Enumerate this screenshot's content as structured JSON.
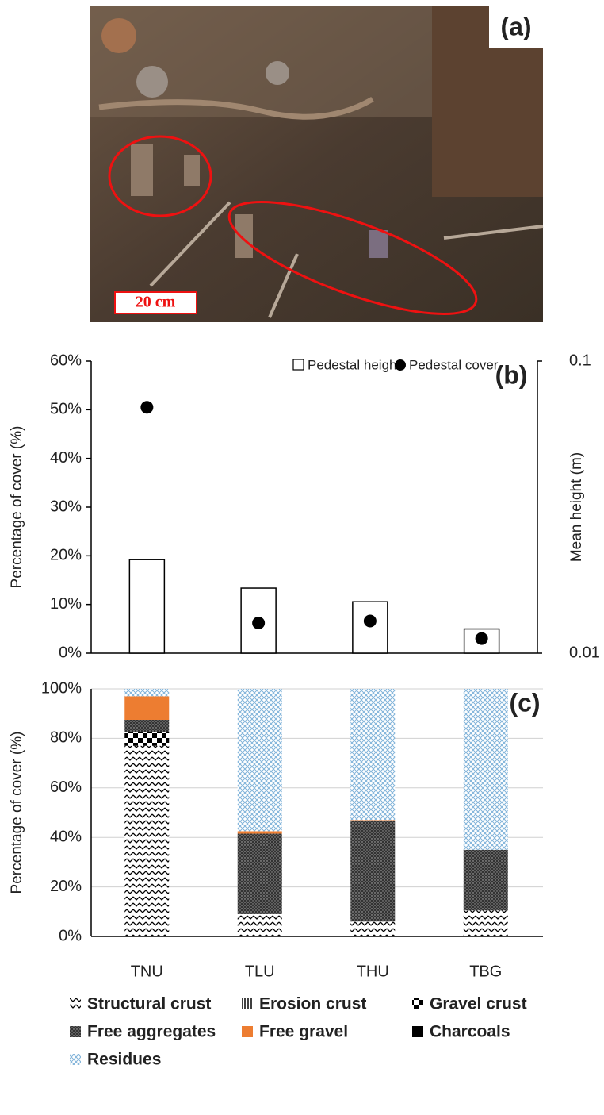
{
  "photo": {
    "label": "(a)",
    "scale_bar": "20 cm"
  },
  "chart_data": [
    {
      "type": "bar",
      "panel_label": "(b)",
      "y_label": "Percentage of cover (%)",
      "y2_label": "Mean height (m)",
      "ylim": [
        0,
        60
      ],
      "yticks": [
        {
          "value": 0,
          "label": "0%"
        },
        {
          "value": 10,
          "label": "10%"
        },
        {
          "value": 20,
          "label": "20%"
        },
        {
          "value": 30,
          "label": "30%"
        },
        {
          "value": 40,
          "label": "40%"
        },
        {
          "value": 50,
          "label": "50%"
        },
        {
          "value": 60,
          "label": "60%"
        }
      ],
      "y2lim": [
        0.01,
        0.1
      ],
      "y2ticks": [
        0.01,
        0.1
      ],
      "y2log": true,
      "grid": false,
      "legend": "top",
      "series": [
        {
          "name": "Pedestal height",
          "type": "bar",
          "axis": "y2",
          "color": "#ffffff",
          "values": [
            0.0209,
            0.0167,
            0.015,
            0.0121
          ]
        },
        {
          "name": "Pedestal cover",
          "type": "scatter",
          "color": "#000000",
          "values": [
            50.5,
            6.2,
            6.6,
            3.0
          ]
        }
      ]
    },
    {
      "type": "stacked_bar",
      "panel_label": "(c)",
      "y_label": "Percentage of cover (%)",
      "categories": [
        "TNU",
        "TLU",
        "THU",
        "TBG"
      ],
      "ylim": [
        0,
        100
      ],
      "yticks": [
        {
          "value": 0,
          "label": "0%"
        },
        {
          "value": 20,
          "label": "20%"
        },
        {
          "value": 40,
          "label": "40%"
        },
        {
          "value": 60,
          "label": "60%"
        },
        {
          "value": 80,
          "label": "80%"
        },
        {
          "value": 100,
          "label": "100%"
        }
      ],
      "grid": true,
      "legend": "bottom",
      "series": [
        {
          "name": "Structural crust",
          "color": "#000000",
          "pattern": "zigzag",
          "values": [
            77,
            9,
            6,
            10.5
          ]
        },
        {
          "name": "Erosion crust",
          "color": "#000000",
          "pattern": "vlines",
          "values": [
            0,
            0,
            0,
            0
          ]
        },
        {
          "name": "Gravel crust",
          "color": "#000000",
          "pattern": "checker",
          "values": [
            5.5,
            0,
            0,
            0
          ]
        },
        {
          "name": "Free aggregates",
          "color": "#333333",
          "pattern": "dots",
          "values": [
            5,
            32.5,
            40.5,
            24.5
          ]
        },
        {
          "name": "Free gravel",
          "color": "#ed7d31",
          "pattern": "solid",
          "values": [
            9.5,
            1,
            0.5,
            0
          ]
        },
        {
          "name": "Charcoals",
          "color": "#000000",
          "pattern": "solid",
          "values": [
            0,
            0,
            0,
            0
          ]
        },
        {
          "name": "Residues",
          "color": "#7fb2d9",
          "pattern": "crosshatch",
          "values": [
            3,
            57.5,
            53,
            65
          ]
        }
      ]
    }
  ]
}
